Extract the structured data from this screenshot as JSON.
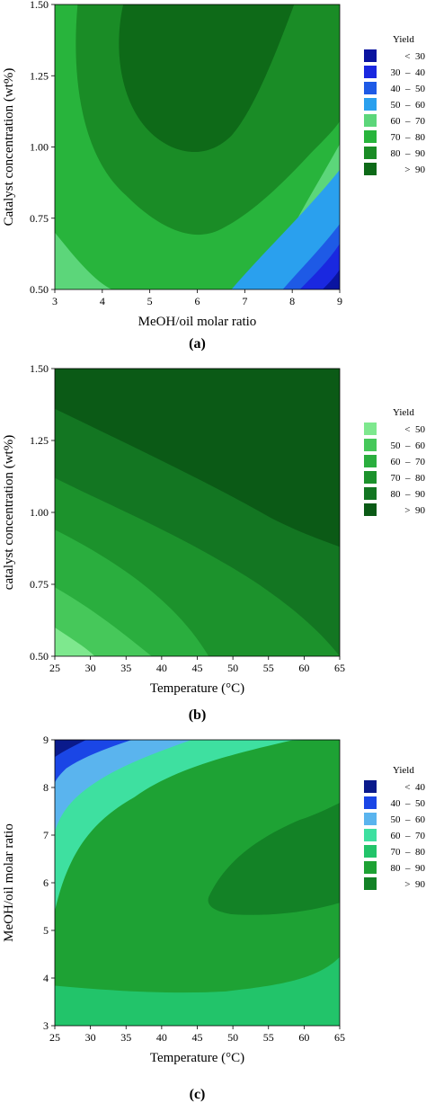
{
  "chart_data": [
    {
      "type": "heatmap",
      "panel_label": "(a)",
      "title": "",
      "xlabel": "MeOH/oil molar ratio",
      "ylabel": "Catalyst concentration (wt%)",
      "xlim": [
        3,
        9
      ],
      "ylim": [
        0.5,
        1.5
      ],
      "xticks": [
        "3",
        "4",
        "5",
        "6",
        "7",
        "8",
        "9"
      ],
      "yticks": [
        "0.50",
        "0.75",
        "1.00",
        "1.25",
        "1.50"
      ],
      "legend": {
        "title": "Yield",
        "position": "right",
        "entries": [
          {
            "label": "<  30",
            "color": "#0a14a0"
          },
          {
            "label": "30  –  40",
            "color": "#1a28e0"
          },
          {
            "label": "40  –  50",
            "color": "#1e5ae6"
          },
          {
            "label": "50  –  60",
            "color": "#2aa0ee"
          },
          {
            "label": "60  –  70",
            "color": "#5cd67a"
          },
          {
            "label": "70  –  80",
            "color": "#28b43c"
          },
          {
            "label": "80  –  90",
            "color": "#1a8c26"
          },
          {
            "label": ">  90",
            "color": "#0e6a18"
          }
        ]
      }
    },
    {
      "type": "heatmap",
      "panel_label": "(b)",
      "title": "",
      "xlabel": "Temperature (°C)",
      "ylabel": "catalyst concentration (wt%)",
      "xlim": [
        25,
        65
      ],
      "ylim": [
        0.5,
        1.5
      ],
      "xticks": [
        "25",
        "30",
        "35",
        "40",
        "45",
        "50",
        "55",
        "60",
        "65"
      ],
      "yticks": [
        "0.50",
        "0.75",
        "1.00",
        "1.25",
        "1.50"
      ],
      "legend": {
        "title": "Yield",
        "position": "right",
        "entries": [
          {
            "label": "<  50",
            "color": "#7ee88e"
          },
          {
            "label": "50  –  60",
            "color": "#46c85a"
          },
          {
            "label": "60  –  70",
            "color": "#2aae3e"
          },
          {
            "label": "70  –  80",
            "color": "#1c922c"
          },
          {
            "label": "80  –  90",
            "color": "#137622"
          },
          {
            "label": ">  90",
            "color": "#0b5a16"
          }
        ]
      }
    },
    {
      "type": "heatmap",
      "panel_label": "(c)",
      "title": "",
      "xlabel": "Temperature (°C)",
      "ylabel": "MeOH/oil molar ratio",
      "xlim": [
        25,
        65
      ],
      "ylim": [
        3,
        9
      ],
      "xticks": [
        "25",
        "30",
        "35",
        "40",
        "45",
        "50",
        "55",
        "60",
        "65"
      ],
      "yticks": [
        "3",
        "4",
        "5",
        "6",
        "7",
        "8",
        "9"
      ],
      "legend": {
        "title": "Yield",
        "position": "right",
        "entries": [
          {
            "label": "<  40",
            "color": "#0a1a8c"
          },
          {
            "label": "40  –  50",
            "color": "#1a46e6"
          },
          {
            "label": "50  –  60",
            "color": "#5ab4ee"
          },
          {
            "label": "60  –  70",
            "color": "#3ee0a0"
          },
          {
            "label": "70  –  80",
            "color": "#22c46a"
          },
          {
            "label": "80  –  90",
            "color": "#1ea234"
          },
          {
            "label": ">  90",
            "color": "#138226"
          }
        ]
      }
    }
  ]
}
